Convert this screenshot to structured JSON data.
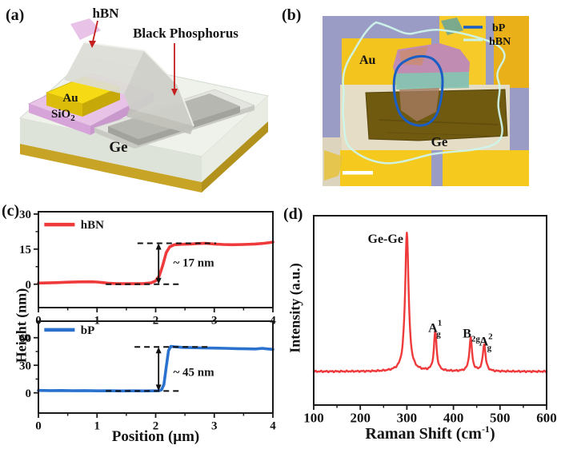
{
  "figure": {
    "panel_a": {
      "label": "(a)",
      "callouts": {
        "hbn": "hBN",
        "bp": "Black Phosphorus"
      },
      "layers": {
        "au": "Au",
        "sio2_base": "SiO",
        "sio2_sub": "2",
        "ge": "Ge"
      }
    },
    "panel_b": {
      "label": "(b)",
      "legend": {
        "bp": "bP",
        "hbn": "hBN"
      },
      "labels": {
        "au": "Au",
        "ge": "Ge"
      },
      "colors": {
        "bp_outline": "#1a5ec5",
        "hbn_outline": "#cdf4ea",
        "pads": "#f3c41e",
        "background": "#9b9cc5"
      }
    },
    "panel_c": {
      "label": "(c)"
    },
    "panel_d": {
      "label": "(d)"
    }
  },
  "chart_data": [
    {
      "id": "hbn_afm_profile",
      "type": "line",
      "title": "",
      "xlabel": "",
      "ylabel": "Height (nm)",
      "xlim": [
        0,
        4
      ],
      "ylim": [
        -10,
        31
      ],
      "xticks": [
        0,
        1,
        2,
        3,
        4
      ],
      "yticks": [
        0,
        15,
        30
      ],
      "legend": {
        "label": "hBN",
        "x1": 0.1,
        "x2": 0.62,
        "tx": 0.72,
        "y": 25.5
      },
      "series": [
        {
          "name": "hBN",
          "color": "#ef3a3c",
          "width": 3.6,
          "points": [
            [
              0,
              0.5
            ],
            [
              0.15,
              0.55
            ],
            [
              0.3,
              0.65
            ],
            [
              0.5,
              0.85
            ],
            [
              0.7,
              1.0
            ],
            [
              0.9,
              1.05
            ],
            [
              1.0,
              0.95
            ],
            [
              1.1,
              0.7
            ],
            [
              1.2,
              0.4
            ],
            [
              1.35,
              0.25
            ],
            [
              1.5,
              0.2
            ],
            [
              1.65,
              0.2
            ],
            [
              1.8,
              0.3
            ],
            [
              1.92,
              0.55
            ],
            [
              2.0,
              1.4
            ],
            [
              2.06,
              3.5
            ],
            [
              2.12,
              8.0
            ],
            [
              2.18,
              13.5
            ],
            [
              2.24,
              16.0
            ],
            [
              2.32,
              16.9
            ],
            [
              2.45,
              17.1
            ],
            [
              2.6,
              17.2
            ],
            [
              2.72,
              17.4
            ],
            [
              2.85,
              17.5
            ],
            [
              3.0,
              17.2
            ],
            [
              3.15,
              17.0
            ],
            [
              3.3,
              16.9
            ],
            [
              3.5,
              17.0
            ],
            [
              3.7,
              17.2
            ],
            [
              3.85,
              17.5
            ],
            [
              3.95,
              17.8
            ],
            [
              4.0,
              18.0
            ]
          ]
        }
      ],
      "annotations": {
        "dashes": [
          {
            "y": 0,
            "x1": 1.15,
            "x2": 2.46
          },
          {
            "y": 17.5,
            "x1": 1.69,
            "x2": 3.03
          }
        ],
        "arrow": {
          "x": 2.05,
          "y1": 0,
          "y2": 17.5
        },
        "note": {
          "text": "~ 17 nm",
          "x": 2.3,
          "y": 7.6
        }
      },
      "step_height_nm": 17
    },
    {
      "id": "bp_afm_profile",
      "type": "line",
      "title": "",
      "xlabel": "Position (μm)",
      "ylabel": "Height (nm)",
      "xlim": [
        0,
        4
      ],
      "ylim": [
        -22,
        78
      ],
      "xticks": [
        0,
        1,
        2,
        3,
        4
      ],
      "yticks": [
        0,
        30,
        60
      ],
      "legend": {
        "label": "bP",
        "x1": 0.1,
        "x2": 0.62,
        "tx": 0.72,
        "y": 68.5
      },
      "series": [
        {
          "name": "bP",
          "color": "#2b72cf",
          "width": 3.6,
          "points": [
            [
              0,
              2.6
            ],
            [
              0.2,
              2.4
            ],
            [
              0.4,
              2.5
            ],
            [
              0.6,
              2.3
            ],
            [
              0.8,
              2.4
            ],
            [
              1.0,
              2.2
            ],
            [
              1.2,
              2.3
            ],
            [
              1.4,
              2.1
            ],
            [
              1.6,
              2.2
            ],
            [
              1.8,
              2.1
            ],
            [
              1.95,
              2.2
            ],
            [
              2.05,
              2.3
            ],
            [
              2.1,
              3.2
            ],
            [
              2.14,
              9.0
            ],
            [
              2.18,
              28.0
            ],
            [
              2.22,
              46.0
            ],
            [
              2.26,
              50.6
            ],
            [
              2.32,
              50.2
            ],
            [
              2.45,
              49.5
            ],
            [
              2.6,
              49.2
            ],
            [
              2.8,
              48.9
            ],
            [
              3.0,
              48.7
            ],
            [
              3.2,
              48.4
            ],
            [
              3.4,
              48.1
            ],
            [
              3.55,
              47.9
            ],
            [
              3.7,
              47.7
            ],
            [
              3.82,
              48.4
            ],
            [
              3.9,
              47.8
            ],
            [
              4.0,
              47.3
            ]
          ]
        }
      ],
      "annotations": {
        "dashes": [
          {
            "y": 2,
            "x1": 1.15,
            "x2": 2.46
          },
          {
            "y": 50,
            "x1": 1.64,
            "x2": 2.92
          }
        ],
        "arrow": {
          "x": 2.05,
          "y1": 2,
          "y2": 50
        },
        "note": {
          "text": "~ 45 nm",
          "x": 2.3,
          "y": 18.5
        }
      },
      "step_height_nm": 45
    },
    {
      "id": "raman_spectrum",
      "type": "line",
      "title": "",
      "xlabel": {
        "pre": "Raman Shift (cm",
        "sup": "-1",
        "post": ")"
      },
      "ylabel": "Intensity (a.u.)",
      "xlim": [
        100,
        600
      ],
      "ylim": [
        -0.2,
        1.2
      ],
      "xticks": [
        100,
        200,
        300,
        400,
        500,
        600
      ],
      "yticks": [],
      "series": [
        {
          "name": "raman",
          "color": "#ef3a3c",
          "width": 2.4,
          "baseline": 0.048,
          "noise": 0.006,
          "peaks": [
            {
              "center": 300,
              "height": 1.03,
              "width": 4.5
            },
            {
              "center": 361,
              "height": 0.29,
              "width": 3.5
            },
            {
              "center": 437,
              "height": 0.245,
              "width": 3.5
            },
            {
              "center": 466,
              "height": 0.2,
              "width": 3.5
            }
          ]
        }
      ],
      "peak_labels": [
        {
          "x": 216,
          "y": 1.0,
          "base": "Ge-Ge"
        },
        {
          "x": 346,
          "y": 0.34,
          "base": "A",
          "sup": "1",
          "sub": "g"
        },
        {
          "x": 420,
          "y": 0.3,
          "base": "B",
          "sub": "2g"
        },
        {
          "x": 455,
          "y": 0.24,
          "base": "A",
          "sup": "2",
          "sub": "g"
        }
      ]
    }
  ]
}
